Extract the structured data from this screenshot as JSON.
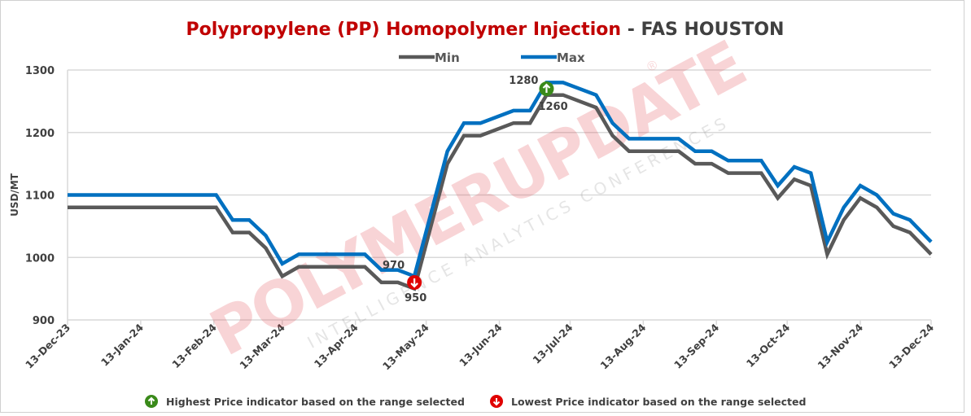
{
  "chart_data": {
    "type": "line",
    "title": {
      "main": "Polypropylene (PP)  Homopolymer Injection",
      "separator": " - ",
      "sub": "FAS HOUSTON"
    },
    "ylabel": "USD/MT",
    "xlabel": "",
    "ylim": [
      900,
      1300
    ],
    "yticks": [
      "900",
      "1000",
      "1100",
      "1200",
      "1300"
    ],
    "xrange": [
      "2023-12-13",
      "2024-12-13"
    ],
    "xticks": [
      [
        "2023-12-13",
        "13-Dec-23"
      ],
      [
        "2024-01-13",
        "13-Jan-24"
      ],
      [
        "2024-02-13",
        "13-Feb-24"
      ],
      [
        "2024-03-13",
        "13-Mar-24"
      ],
      [
        "2024-04-13",
        "13-Apr-24"
      ],
      [
        "2024-05-13",
        "13-May-24"
      ],
      [
        "2024-06-13",
        "13-Jun-24"
      ],
      [
        "2024-07-13",
        "13-Jul-24"
      ],
      [
        "2024-08-13",
        "13-Aug-24"
      ],
      [
        "2024-09-13",
        "13-Sep-24"
      ],
      [
        "2024-10-13",
        "13-Oct-24"
      ],
      [
        "2024-11-13",
        "13-Nov-24"
      ],
      [
        "2024-12-13",
        "13-Dec-24"
      ]
    ],
    "grid": true,
    "legend": {
      "position": "top-center"
    },
    "x": [
      "2023-12-13",
      "2024-02-14",
      "2024-02-21",
      "2024-02-28",
      "2024-03-06",
      "2024-03-13",
      "2024-03-20",
      "2024-04-17",
      "2024-04-24",
      "2024-05-01",
      "2024-05-08",
      "2024-05-22",
      "2024-05-29",
      "2024-06-05",
      "2024-06-19",
      "2024-06-26",
      "2024-07-03",
      "2024-07-10",
      "2024-07-24",
      "2024-07-31",
      "2024-08-07",
      "2024-08-28",
      "2024-09-04",
      "2024-09-11",
      "2024-09-18",
      "2024-10-02",
      "2024-10-09",
      "2024-10-16",
      "2024-10-23",
      "2024-10-30",
      "2024-11-06",
      "2024-11-13",
      "2024-11-20",
      "2024-11-27",
      "2024-12-04",
      "2024-12-13"
    ],
    "series": [
      {
        "name": "Min",
        "color": "#595959",
        "values": [
          1080,
          1080,
          1040,
          1040,
          1015,
          970,
          985,
          985,
          960,
          960,
          950,
          1150,
          1195,
          1195,
          1215,
          1215,
          1260,
          1260,
          1240,
          1195,
          1170,
          1170,
          1150,
          1150,
          1135,
          1135,
          1095,
          1125,
          1115,
          1005,
          1060,
          1095,
          1080,
          1050,
          1040,
          1005
        ]
      },
      {
        "name": "Max",
        "color": "#0070C0",
        "values": [
          1100,
          1100,
          1060,
          1060,
          1035,
          990,
          1005,
          1005,
          980,
          980,
          970,
          1170,
          1215,
          1215,
          1235,
          1235,
          1280,
          1280,
          1260,
          1215,
          1190,
          1190,
          1170,
          1170,
          1155,
          1155,
          1115,
          1145,
          1135,
          1025,
          1080,
          1115,
          1100,
          1070,
          1060,
          1025
        ]
      }
    ],
    "annotations": [
      {
        "type": "high",
        "date": "2024-07-03",
        "marker_value": 1270,
        "labels": [
          "1280",
          "1260"
        ],
        "color": "#3A8A1A"
      },
      {
        "type": "low",
        "date": "2024-05-08",
        "marker_value": 960,
        "labels": [
          "970",
          "950"
        ],
        "color": "#E00000"
      }
    ],
    "footer_legend": [
      {
        "icon": "green-up-arrow",
        "text": "Highest Price indicator based on the range selected"
      },
      {
        "icon": "red-down-arrow",
        "text": "Lowest Price indicator based on the range selected"
      }
    ],
    "watermark": {
      "brand": "POLYMERUPDATE",
      "tagline": "INTELLIGENCE   ANALYTICS   CONFERENCES",
      "mark": "®"
    }
  }
}
